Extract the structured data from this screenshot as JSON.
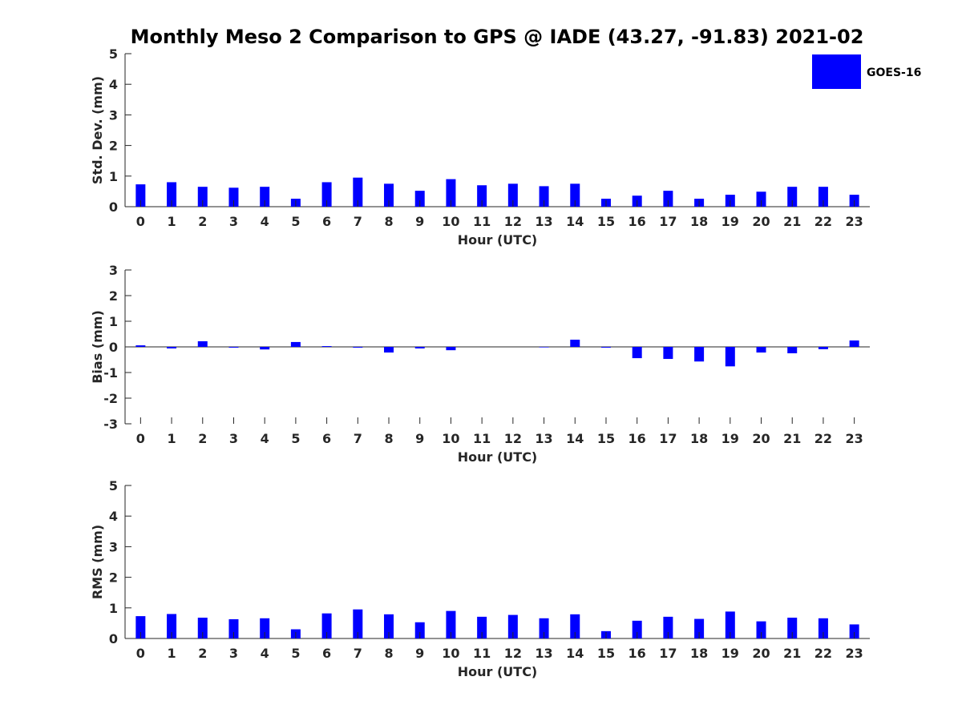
{
  "chart_data": {
    "type": "bar",
    "title": "Monthly Meso 2 Comparison to GPS @ IADE (43.27, -91.83) 2021-02",
    "legend": {
      "label": "GOES-16",
      "color": "#0000ff",
      "placement": "top-right"
    },
    "categories": [
      "0",
      "1",
      "2",
      "3",
      "4",
      "5",
      "6",
      "7",
      "8",
      "9",
      "10",
      "11",
      "12",
      "13",
      "14",
      "15",
      "16",
      "17",
      "18",
      "19",
      "20",
      "21",
      "22",
      "23"
    ],
    "panels": [
      {
        "name": "stddev",
        "ylabel": "Std. Dev. (mm)",
        "xlabel": "Hour (UTC)",
        "ylim": [
          0,
          5
        ],
        "yticks": [
          0,
          1,
          2,
          3,
          4,
          5
        ],
        "values": [
          0.73,
          0.8,
          0.65,
          0.62,
          0.65,
          0.26,
          0.8,
          0.95,
          0.75,
          0.52,
          0.9,
          0.7,
          0.75,
          0.67,
          0.75,
          0.26,
          0.36,
          0.52,
          0.26,
          0.39,
          0.49,
          0.65,
          0.65,
          0.39
        ]
      },
      {
        "name": "bias",
        "ylabel": "Bias (mm)",
        "xlabel": "Hour (UTC)",
        "ylim": [
          -3,
          3
        ],
        "yticks": [
          -3,
          -2,
          -1,
          0,
          1,
          2,
          3
        ],
        "values": [
          0.06,
          -0.06,
          0.22,
          -0.03,
          -0.1,
          0.19,
          0.03,
          -0.03,
          -0.22,
          -0.06,
          -0.13,
          0.0,
          0.0,
          -0.02,
          0.28,
          -0.03,
          -0.44,
          -0.47,
          -0.57,
          -0.76,
          -0.22,
          -0.25,
          -0.09,
          0.25
        ]
      },
      {
        "name": "rms",
        "ylabel": "RMS (mm)",
        "xlabel": "Hour (UTC)",
        "ylim": [
          0,
          5
        ],
        "yticks": [
          0,
          1,
          2,
          3,
          4,
          5
        ],
        "values": [
          0.73,
          0.8,
          0.68,
          0.63,
          0.66,
          0.3,
          0.82,
          0.95,
          0.79,
          0.53,
          0.9,
          0.71,
          0.77,
          0.66,
          0.79,
          0.24,
          0.58,
          0.71,
          0.64,
          0.88,
          0.56,
          0.68,
          0.66,
          0.46
        ]
      }
    ]
  }
}
